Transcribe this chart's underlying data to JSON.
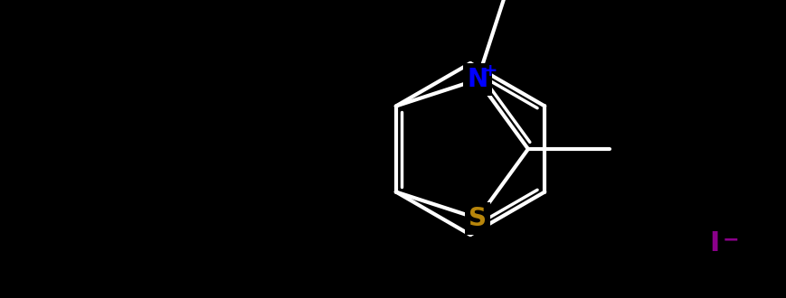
{
  "background_color": "#000000",
  "S_color": "#B8860B",
  "N_color": "#0000FF",
  "I_color": "#8B008B",
  "line_color": "#FFFFFF",
  "S_label": "S",
  "N_label": "N",
  "N_plus": "+",
  "I_label": "I",
  "I_minus": "−",
  "figsize": [
    8.7,
    3.3
  ],
  "dpi": 100,
  "lw": 3.0,
  "double_lw": 2.5,
  "font_size": 20
}
